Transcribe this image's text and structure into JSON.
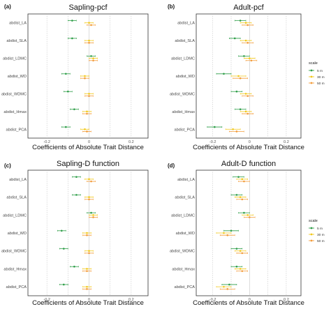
{
  "chart_data": [
    {
      "type": "scatter",
      "panel": "(a)",
      "title": "Sapling-pcf",
      "xlabel": "Coefficients of Absolute Trait Distance",
      "categories": [
        "abdist_LA",
        "abdist_SLA",
        "abdist_LDMC",
        "abdist_WD",
        "abdist_WDMC",
        "abdist_Hmax",
        "abdist_PCA"
      ],
      "xticks": [
        "-0.2",
        "-0.1",
        "0",
        "0.1",
        "0.2"
      ],
      "xlim": [
        -0.29,
        0.28
      ],
      "series": [
        {
          "name": "5 m",
          "color": "#2e9e48",
          "values": [
            -0.08,
            -0.08,
            0.01,
            -0.11,
            -0.1,
            -0.07,
            -0.11
          ],
          "lo": [
            -0.1,
            -0.1,
            -0.01,
            -0.13,
            -0.12,
            -0.09,
            -0.13
          ],
          "hi": [
            -0.06,
            -0.06,
            0.03,
            -0.09,
            -0.08,
            -0.05,
            -0.09
          ]
        },
        {
          "name": "30 m",
          "color": "#f2c81a",
          "values": [
            0.0,
            0.0,
            0.02,
            -0.02,
            0.0,
            -0.01,
            -0.02
          ],
          "lo": [
            -0.02,
            -0.02,
            0.0,
            -0.04,
            -0.02,
            -0.03,
            -0.04
          ],
          "hi": [
            0.02,
            0.02,
            0.04,
            0.0,
            0.02,
            0.01,
            0.0
          ]
        },
        {
          "name": "50 m",
          "color": "#f39c3a",
          "values": [
            0.01,
            0.0,
            0.02,
            -0.02,
            0.0,
            -0.01,
            -0.01
          ],
          "lo": [
            -0.01,
            -0.02,
            0.0,
            -0.04,
            -0.02,
            -0.03,
            -0.03
          ],
          "hi": [
            0.03,
            0.02,
            0.04,
            0.0,
            0.02,
            0.01,
            0.01
          ]
        }
      ]
    },
    {
      "type": "scatter",
      "panel": "(b)",
      "title": "Adult-pcf",
      "xlabel": "Coefficients of Absolute Trait Distance",
      "categories": [
        "abdist_LA",
        "abdist_SLA",
        "abdist_LDMC",
        "abdist_WD",
        "abdist_WDMC",
        "abdist_Hmax",
        "abdist_PCA"
      ],
      "xticks": [
        "-0.2",
        "-0.1",
        "0",
        "0.1",
        "0.2"
      ],
      "xlim": [
        -0.29,
        0.28
      ],
      "series": [
        {
          "name": "5 m",
          "color": "#2e9e48",
          "values": [
            -0.05,
            -0.08,
            -0.03,
            -0.14,
            -0.07,
            -0.05,
            -0.19
          ],
          "lo": [
            -0.08,
            -0.11,
            -0.06,
            -0.18,
            -0.1,
            -0.08,
            -0.23
          ],
          "hi": [
            -0.02,
            -0.05,
            0.0,
            -0.1,
            -0.04,
            -0.02,
            -0.15
          ]
        },
        {
          "name": "30 m",
          "color": "#f2c81a",
          "values": [
            -0.02,
            -0.02,
            0.0,
            -0.06,
            -0.02,
            -0.02,
            -0.09
          ],
          "lo": [
            -0.05,
            -0.05,
            -0.03,
            -0.1,
            -0.05,
            -0.05,
            -0.13
          ],
          "hi": [
            0.01,
            0.01,
            0.03,
            -0.02,
            0.01,
            0.01,
            -0.05
          ]
        },
        {
          "name": "50 m",
          "color": "#f39c3a",
          "values": [
            -0.01,
            -0.01,
            0.01,
            -0.05,
            -0.01,
            -0.01,
            -0.07
          ],
          "lo": [
            -0.04,
            -0.04,
            -0.02,
            -0.09,
            -0.04,
            -0.04,
            -0.11
          ],
          "hi": [
            0.02,
            0.02,
            0.04,
            -0.01,
            0.02,
            0.02,
            -0.03
          ]
        }
      ]
    },
    {
      "type": "scatter",
      "panel": "(c)",
      "title": "Sapling-D function",
      "xlabel": "Coefficients of Absolute Trait Distance",
      "categories": [
        "abdist_LA",
        "abdist_SLA",
        "abdist_LDMC",
        "abdist_WD",
        "abdist_WDMC",
        "abdist_Hmax",
        "abdist_PCA"
      ],
      "xticks": [
        "-0.2",
        "-0.1",
        "0",
        "0.1",
        "0.2"
      ],
      "xlim": [
        -0.29,
        0.28
      ],
      "series": [
        {
          "name": "5 m",
          "color": "#2e9e48",
          "values": [
            -0.06,
            -0.06,
            0.01,
            -0.13,
            -0.12,
            -0.07,
            -0.12
          ],
          "lo": [
            -0.08,
            -0.08,
            -0.01,
            -0.15,
            -0.14,
            -0.09,
            -0.14
          ],
          "hi": [
            -0.04,
            -0.04,
            0.03,
            -0.11,
            -0.1,
            -0.05,
            -0.1
          ]
        },
        {
          "name": "30 m",
          "color": "#f2c81a",
          "values": [
            0.0,
            0.0,
            0.02,
            -0.01,
            0.0,
            -0.01,
            -0.01
          ],
          "lo": [
            -0.02,
            -0.02,
            0.0,
            -0.03,
            -0.02,
            -0.03,
            -0.03
          ],
          "hi": [
            0.02,
            0.02,
            0.04,
            0.01,
            0.02,
            0.01,
            0.01
          ]
        },
        {
          "name": "50 m",
          "color": "#f39c3a",
          "values": [
            0.01,
            0.0,
            0.02,
            -0.01,
            0.0,
            -0.01,
            -0.01
          ],
          "lo": [
            -0.01,
            -0.02,
            0.0,
            -0.03,
            -0.02,
            -0.03,
            -0.03
          ],
          "hi": [
            0.03,
            0.02,
            0.04,
            0.01,
            0.02,
            0.01,
            0.01
          ]
        }
      ]
    },
    {
      "type": "scatter",
      "panel": "(d)",
      "title": "Adult-D function",
      "xlabel": "Coefficients of Absolute Trait Distance",
      "categories": [
        "abdist_LA",
        "abdist_SLA",
        "abdist_LDMC",
        "abdist_WD",
        "abdist_WDMC",
        "abdist_Hmax",
        "abdist_PCA"
      ],
      "xticks": [
        "-0.2",
        "-0.1",
        "0",
        "0.1",
        "0.2"
      ],
      "xlim": [
        -0.29,
        0.28
      ],
      "series": [
        {
          "name": "5 m",
          "color": "#2e9e48",
          "values": [
            -0.06,
            -0.07,
            -0.03,
            -0.1,
            -0.07,
            -0.07,
            -0.11
          ],
          "lo": [
            -0.09,
            -0.1,
            -0.06,
            -0.14,
            -0.1,
            -0.1,
            -0.15
          ],
          "hi": [
            -0.03,
            -0.04,
            0.0,
            -0.06,
            -0.04,
            -0.04,
            -0.07
          ]
        },
        {
          "name": "30 m",
          "color": "#f2c81a",
          "values": [
            -0.04,
            -0.05,
            -0.01,
            -0.14,
            -0.05,
            -0.05,
            -0.14
          ],
          "lo": [
            -0.07,
            -0.08,
            -0.04,
            -0.18,
            -0.08,
            -0.08,
            -0.18
          ],
          "hi": [
            -0.01,
            -0.02,
            0.02,
            -0.1,
            -0.02,
            -0.02,
            -0.1
          ]
        },
        {
          "name": "50 m",
          "color": "#f39c3a",
          "values": [
            -0.03,
            -0.04,
            0.0,
            -0.12,
            -0.04,
            -0.04,
            -0.12
          ],
          "lo": [
            -0.06,
            -0.07,
            -0.03,
            -0.16,
            -0.07,
            -0.07,
            -0.16
          ],
          "hi": [
            0.0,
            -0.01,
            0.03,
            -0.08,
            -0.01,
            -0.01,
            -0.08
          ]
        }
      ]
    }
  ],
  "legend": {
    "title": "scale",
    "entries": [
      {
        "label": "5 m",
        "color": "#2e9e48"
      },
      {
        "label": "30 m",
        "color": "#f2c81a"
      },
      {
        "label": "50 m",
        "color": "#f39c3a"
      }
    ]
  }
}
